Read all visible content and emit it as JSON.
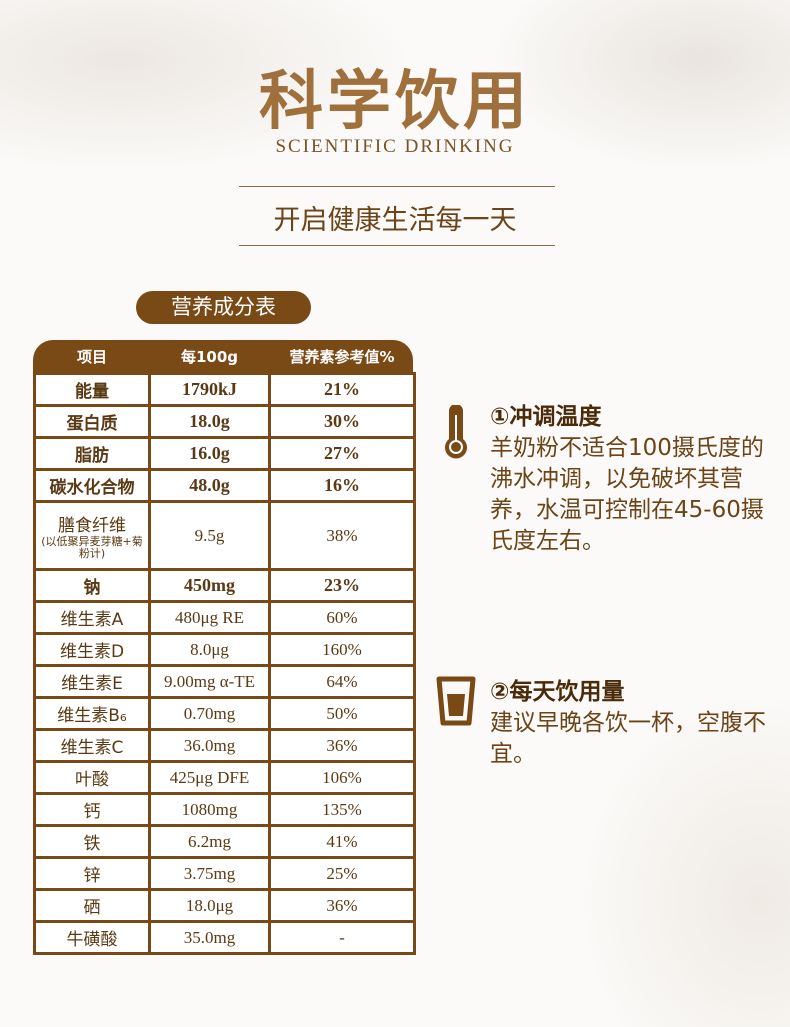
{
  "header": {
    "title": "科学饮用",
    "subtitle": "SCIENTIFIC DRINKING",
    "slogan": "开启健康生活每一天"
  },
  "nutrition": {
    "badge": "营养成分表",
    "columns": [
      "项目",
      "每100g",
      "营养素参考值%"
    ],
    "rows": [
      {
        "item": "能量",
        "amount": "1790kJ",
        "nrv": "21%",
        "bold": true
      },
      {
        "item": "蛋白质",
        "amount": "18.0g",
        "nrv": "30%",
        "bold": true
      },
      {
        "item": "脂肪",
        "amount": "16.0g",
        "nrv": "27%",
        "bold": true
      },
      {
        "item": "碳水化合物",
        "amount": "48.0g",
        "nrv": "16%",
        "bold": true
      },
      {
        "item": "膳食纤维",
        "note": "(以低聚异麦芽糖+菊粉计)",
        "amount": "9.5g",
        "nrv": "38%"
      },
      {
        "item": "钠",
        "amount": "450mg",
        "nrv": "23%",
        "bold": true
      },
      {
        "item": "维生素A",
        "amount": "480μg RE",
        "nrv": "60%"
      },
      {
        "item": "维生素D",
        "amount": "8.0μg",
        "nrv": "160%"
      },
      {
        "item": "维生素E",
        "amount": "9.00mg α-TE",
        "nrv": "64%"
      },
      {
        "item": "维生素B₆",
        "amount": "0.70mg",
        "nrv": "50%"
      },
      {
        "item": "维生素C",
        "amount": "36.0mg",
        "nrv": "36%"
      },
      {
        "item": "叶酸",
        "amount": "425μg DFE",
        "nrv": "106%"
      },
      {
        "item": "钙",
        "amount": "1080mg",
        "nrv": "135%"
      },
      {
        "item": "铁",
        "amount": "6.2mg",
        "nrv": "41%"
      },
      {
        "item": "锌",
        "amount": "3.75mg",
        "nrv": "25%"
      },
      {
        "item": "硒",
        "amount": "18.0μg",
        "nrv": "36%"
      },
      {
        "item": "牛磺酸",
        "amount": "35.0mg",
        "nrv": "-"
      }
    ]
  },
  "tips": [
    {
      "icon": "thermometer-icon",
      "title": "①冲调温度",
      "text": "羊奶粉不适合100摄氏度的沸水冲调，以免破坏其营养，水温可控制在45-60摄氏度左右。"
    },
    {
      "icon": "cup-icon",
      "title": "②每天饮用量",
      "text": "建议早晚各饮一杯，空腹不宜。"
    }
  ],
  "colors": {
    "brand": "#7a4a16",
    "text": "#6b4418"
  }
}
